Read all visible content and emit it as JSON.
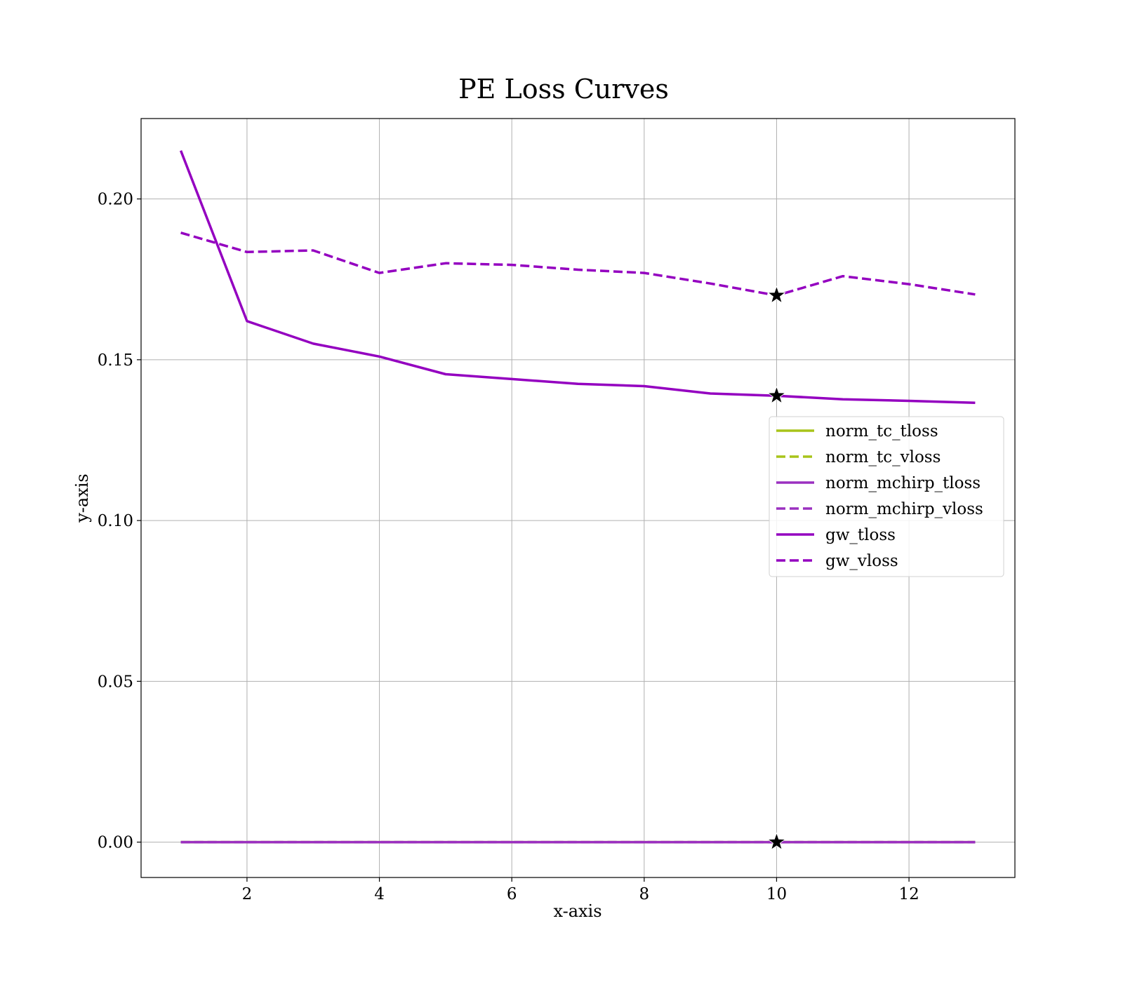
{
  "chart_data": {
    "type": "line",
    "title": "PE Loss Curves",
    "xlabel": "x-axis",
    "ylabel": "y-axis",
    "xlim": [
      0.4,
      13.6
    ],
    "ylim": [
      -0.011,
      0.225
    ],
    "xticks": [
      2,
      4,
      6,
      8,
      10,
      12
    ],
    "xtick_labels": [
      "2",
      "4",
      "6",
      "8",
      "10",
      "12"
    ],
    "yticks": [
      0.0,
      0.05,
      0.1,
      0.15,
      0.2
    ],
    "ytick_labels": [
      "0.00",
      "0.05",
      "0.10",
      "0.15",
      "0.20"
    ],
    "grid": true,
    "legend_position": "center-right",
    "x": [
      1,
      2,
      3,
      4,
      5,
      6,
      7,
      8,
      9,
      10,
      11,
      12,
      13
    ],
    "series": [
      {
        "name": "norm_tc_tloss",
        "color": "#a8c41a",
        "style": "solid",
        "values": [
          0,
          0,
          0,
          0,
          0,
          0,
          0,
          0,
          0,
          0,
          0,
          0,
          0
        ]
      },
      {
        "name": "norm_tc_vloss",
        "color": "#a8c41a",
        "style": "dashed",
        "values": [
          0,
          0,
          0,
          0,
          0,
          0,
          0,
          0,
          0,
          0,
          0,
          0,
          0
        ]
      },
      {
        "name": "norm_mchirp_tloss",
        "color": "#9b30c0",
        "style": "solid",
        "values": [
          0,
          0,
          0,
          0,
          0,
          0,
          0,
          0,
          0,
          0,
          0,
          0,
          0
        ]
      },
      {
        "name": "norm_mchirp_vloss",
        "color": "#9b30c0",
        "style": "dashed",
        "values": [
          0,
          0,
          0,
          0,
          0,
          0,
          0,
          0,
          0,
          0,
          0,
          0,
          0
        ]
      },
      {
        "name": "gw_tloss",
        "color": "#9400c0",
        "style": "solid",
        "values": [
          0.215,
          0.162,
          0.155,
          0.151,
          0.1455,
          0.144,
          0.1425,
          0.1418,
          0.1395,
          0.1388,
          0.1377,
          0.1372,
          0.1366
        ]
      },
      {
        "name": "gw_vloss",
        "color": "#9400c0",
        "style": "dashed",
        "values": [
          0.1895,
          0.1835,
          0.184,
          0.177,
          0.18,
          0.1795,
          0.178,
          0.177,
          0.1737,
          0.17,
          0.176,
          0.1735,
          0.1703
        ]
      }
    ],
    "markers": [
      {
        "x": 10,
        "y": 0.17,
        "symbol": "star"
      },
      {
        "x": 10,
        "y": 0.1388,
        "symbol": "star"
      },
      {
        "x": 10,
        "y": 0.0,
        "symbol": "star"
      }
    ]
  }
}
